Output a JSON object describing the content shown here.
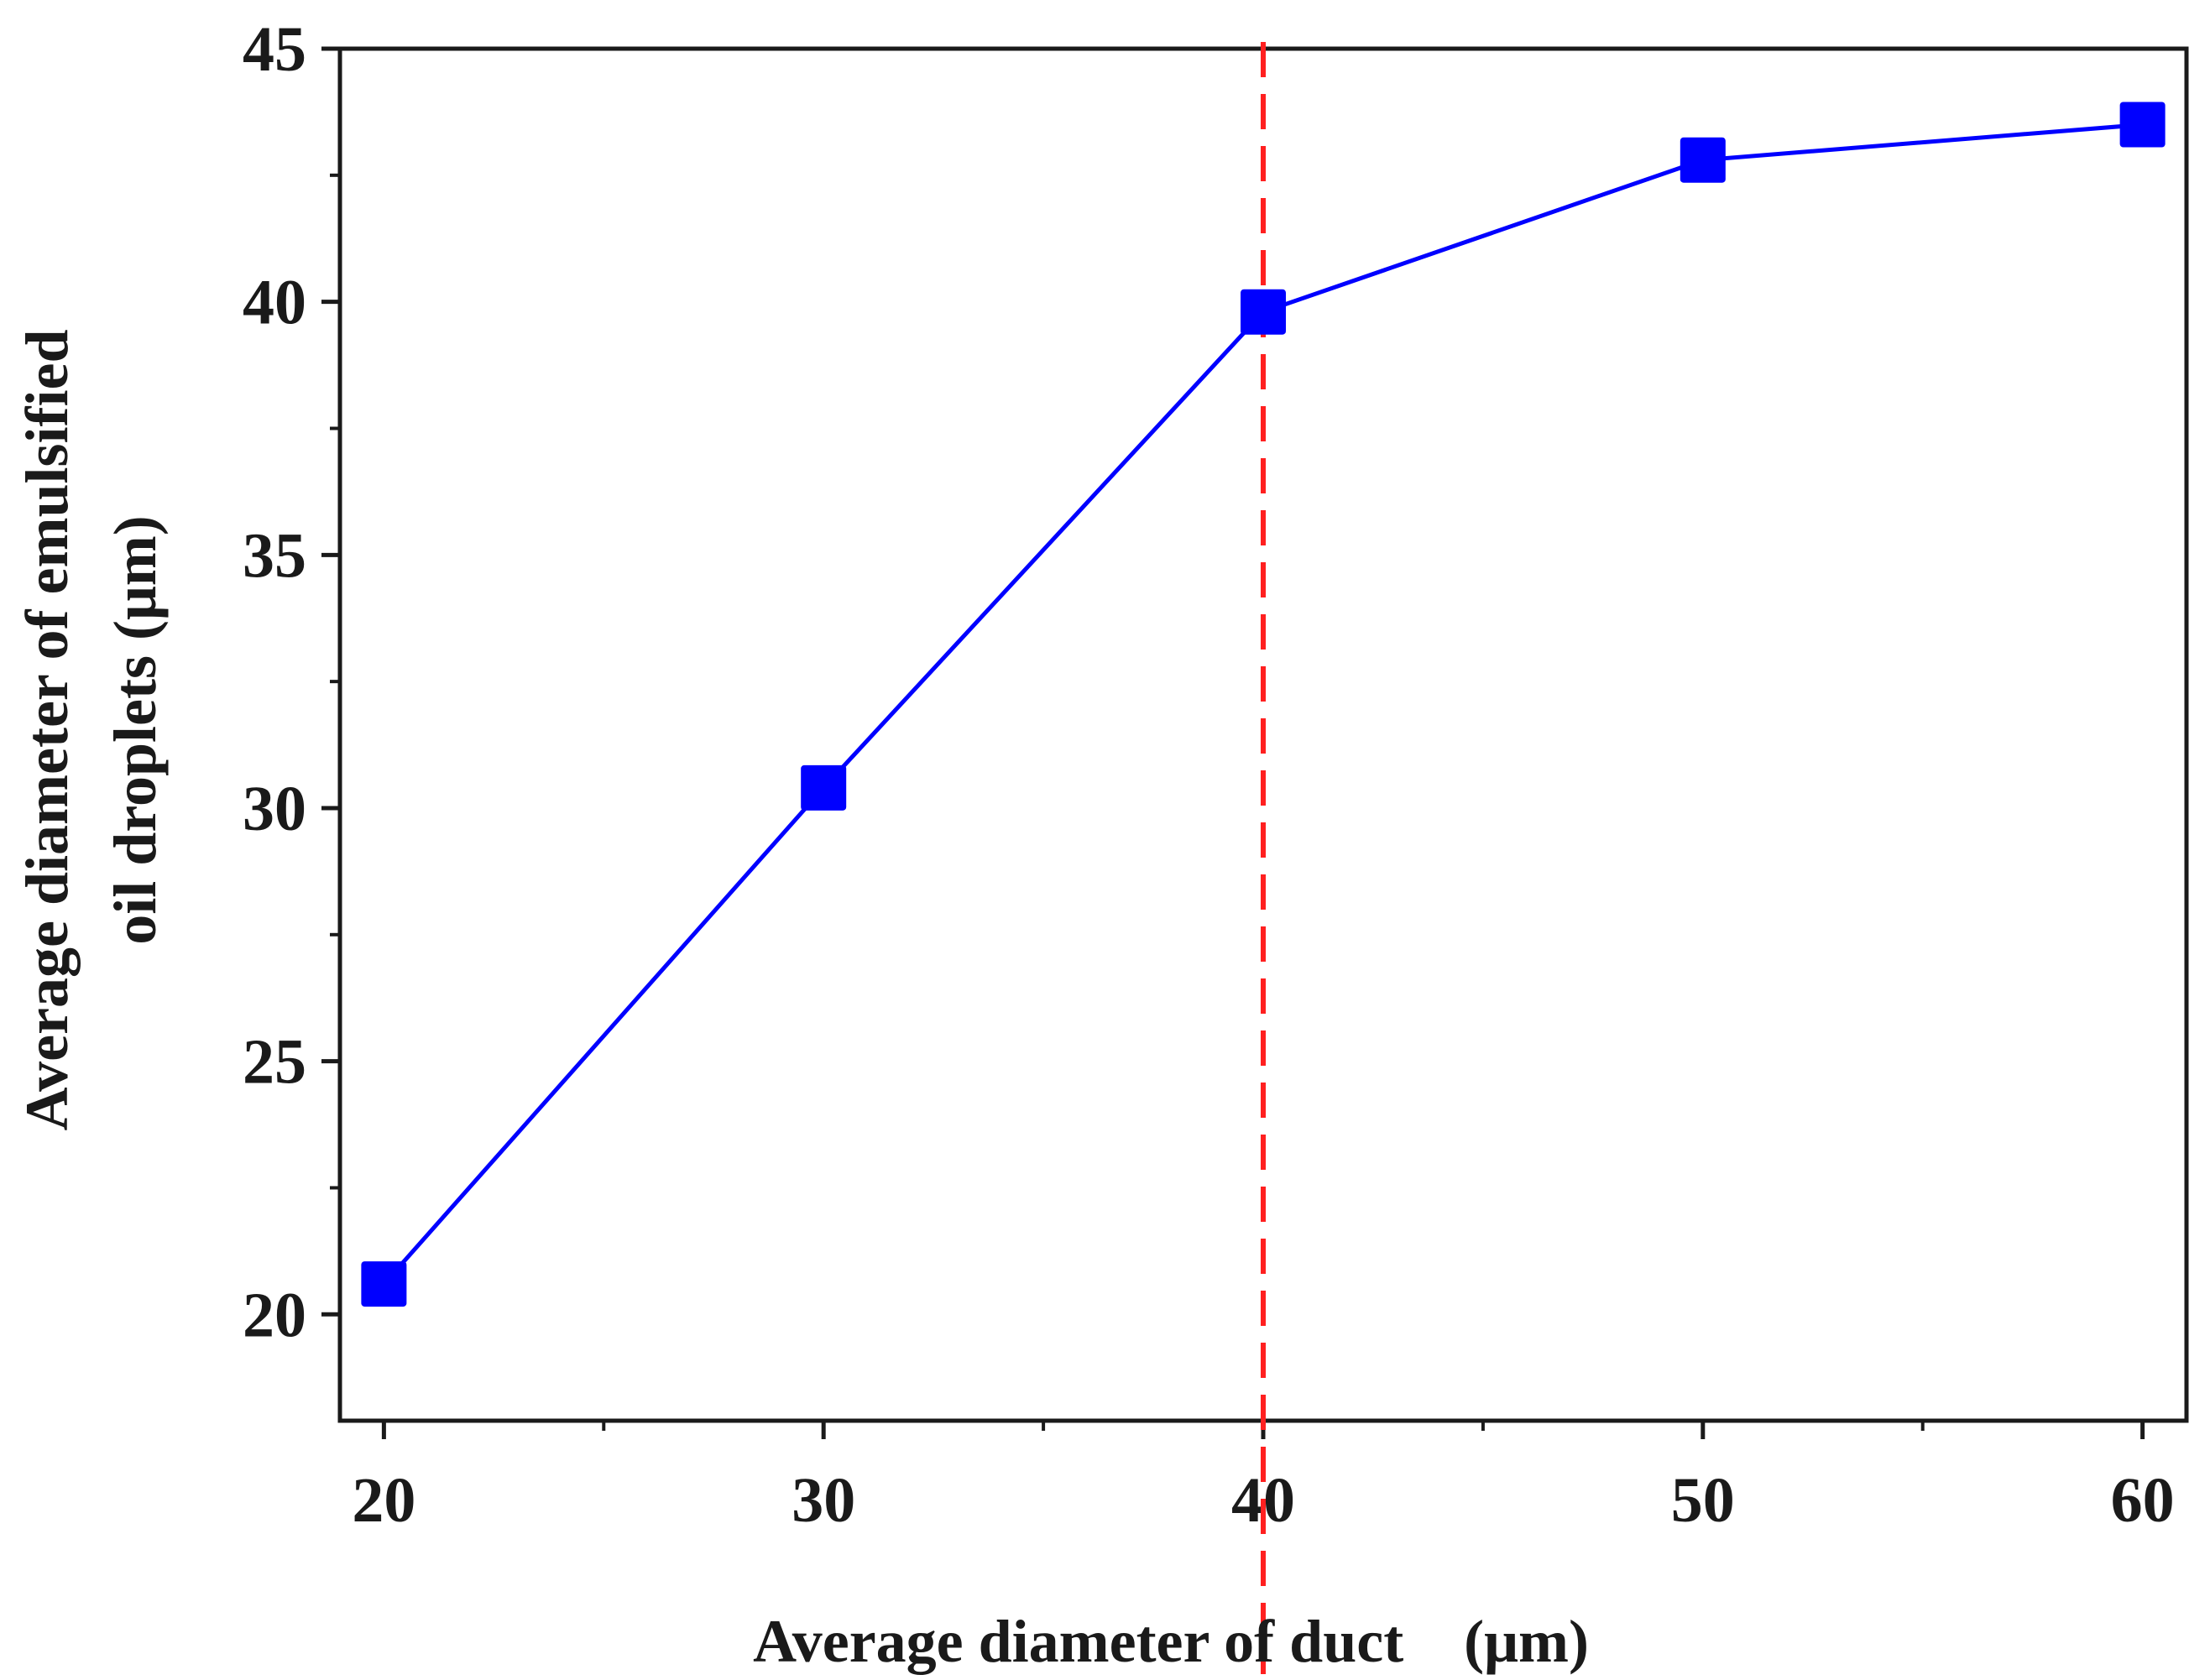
{
  "chart_data": {
    "type": "line",
    "title": "",
    "xlabel": "Average diameter of duct　(μm)",
    "ylabel_line1": "Average diameter of emulsified",
    "ylabel_line2": "oil droplets (μm)",
    "xlim": [
      19,
      61
    ],
    "ylim": [
      17.9,
      45
    ],
    "xticks": [
      20,
      30,
      40,
      50,
      60
    ],
    "yticks": [
      20,
      25,
      30,
      35,
      40,
      45
    ],
    "x": [
      20,
      30,
      40,
      50,
      60
    ],
    "series": [
      {
        "name": "Average diameter of emulsified oil droplets",
        "values": [
          20.6,
          30.4,
          39.8,
          42.8,
          43.5
        ],
        "color": "#0000ff"
      }
    ],
    "reference_line": {
      "x": 40,
      "color": "#ff2020",
      "style": "dashed"
    },
    "grid": false,
    "legend": "none"
  }
}
